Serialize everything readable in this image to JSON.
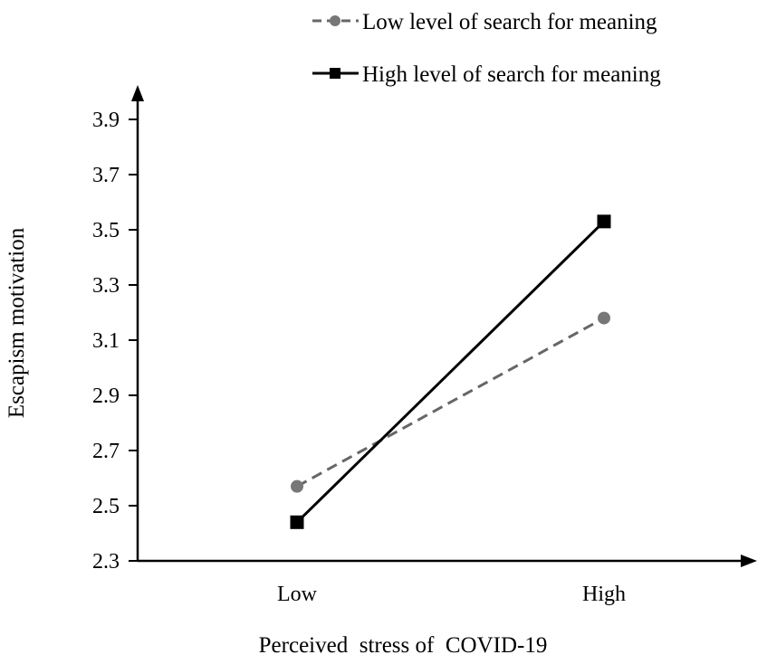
{
  "chart_data": {
    "type": "line",
    "title": "",
    "xlabel": "Perceived  stress of  COVID-19",
    "ylabel": "Escapism motivation",
    "categories": [
      "Low",
      "High"
    ],
    "ylim": [
      2.3,
      3.9
    ],
    "yticks": [
      "2.3",
      "2.5",
      "2.7",
      "2.9",
      "3.1",
      "3.3",
      "3.5",
      "3.7",
      "3.9"
    ],
    "grid": false,
    "legend_position": "top-right",
    "series": [
      {
        "name": "Low level of search for meaning",
        "values": [
          2.57,
          3.18
        ],
        "color": "#666666",
        "line_style": "dashed",
        "marker": "circle"
      },
      {
        "name": "High level of search for meaning",
        "values": [
          2.44,
          3.53
        ],
        "color": "#000000",
        "line_style": "solid",
        "marker": "square"
      }
    ]
  }
}
